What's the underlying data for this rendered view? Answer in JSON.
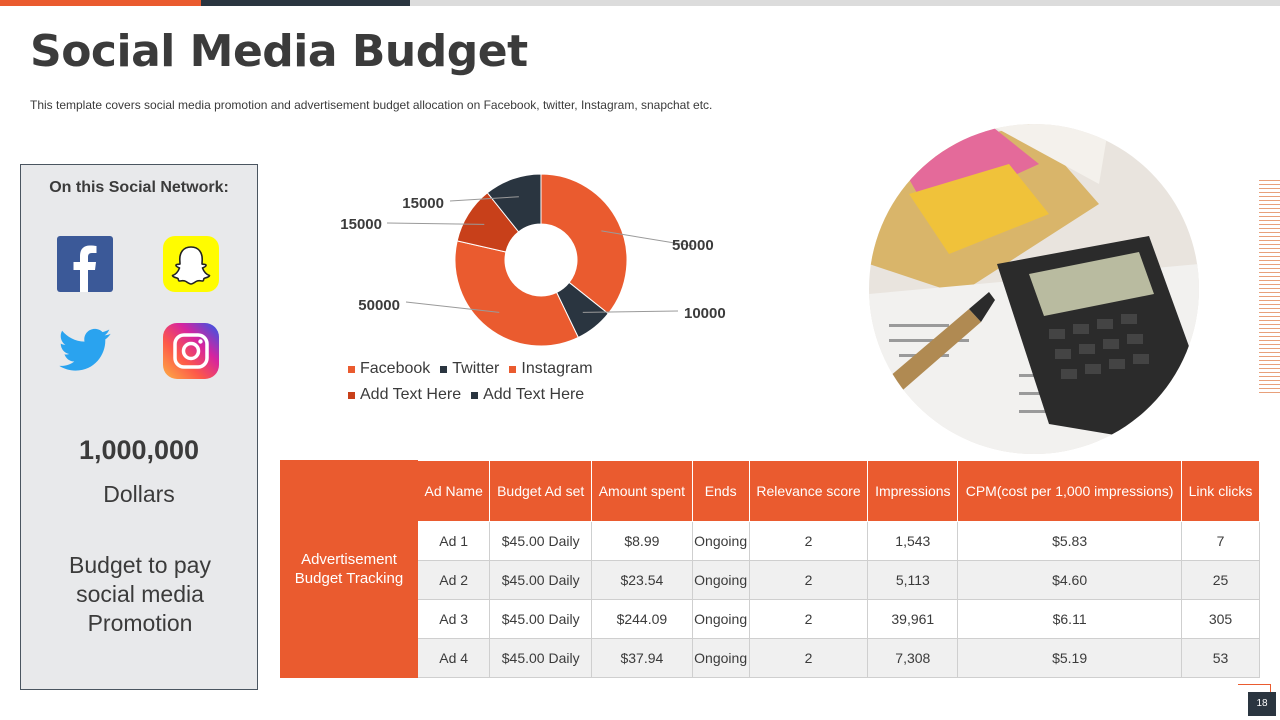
{
  "title": "Social Media Budget",
  "subtitle": "This template covers social media promotion and advertisement  budget allocation on Facebook, twitter, Instagram, snapchat etc.",
  "left_panel": {
    "heading": "On this Social Network:",
    "icons": [
      "facebook-icon",
      "snapchat-icon",
      "twitter-icon",
      "instagram-icon"
    ],
    "amount": "1,000,000",
    "unit": "Dollars",
    "description": "Budget to pay social media Promotion"
  },
  "colors": {
    "accent": "#ea5b2f",
    "dark": "#2a3540",
    "dark_orange": "#c8401a",
    "panel_bg": "#e8e9eb"
  },
  "chart_data": {
    "type": "pie",
    "hole": true,
    "series": [
      {
        "name": "Facebook",
        "value": 50000,
        "color": "#ea5b2f"
      },
      {
        "name": "Twitter",
        "value": 10000,
        "color": "#2a3540"
      },
      {
        "name": "Instagram",
        "value": 50000,
        "color": "#ea5b2f"
      },
      {
        "name": "Add Text Here",
        "value": 15000,
        "color": "#c8401a"
      },
      {
        "name": "Add Text Here",
        "value": 15000,
        "color": "#2a3540"
      }
    ],
    "legend_position": "bottom"
  },
  "table": {
    "side_label": "Advertisement Budget Tracking",
    "headers": [
      "Ad Name",
      "Budget Ad set",
      "Amount spent",
      "Ends",
      "Relevance score",
      "Impressions",
      "CPM(cost per 1,000 impressions)",
      "Link clicks"
    ],
    "rows": [
      [
        "Ad 1",
        "$45.00 Daily",
        "$8.99",
        "Ongoing",
        "2",
        "1,543",
        "$5.83",
        "7"
      ],
      [
        "Ad 2",
        "$45.00 Daily",
        "$23.54",
        "Ongoing",
        "2",
        "5,113",
        "$4.60",
        "25"
      ],
      [
        "Ad 3",
        "$45.00 Daily",
        "$244.09",
        "Ongoing",
        "2",
        "39,961",
        "$6.11",
        "305"
      ],
      [
        "Ad 4",
        "$45.00 Daily",
        "$37.94",
        "Ongoing",
        "2",
        "7,308",
        "$5.19",
        "53"
      ]
    ]
  },
  "page_number": "18"
}
